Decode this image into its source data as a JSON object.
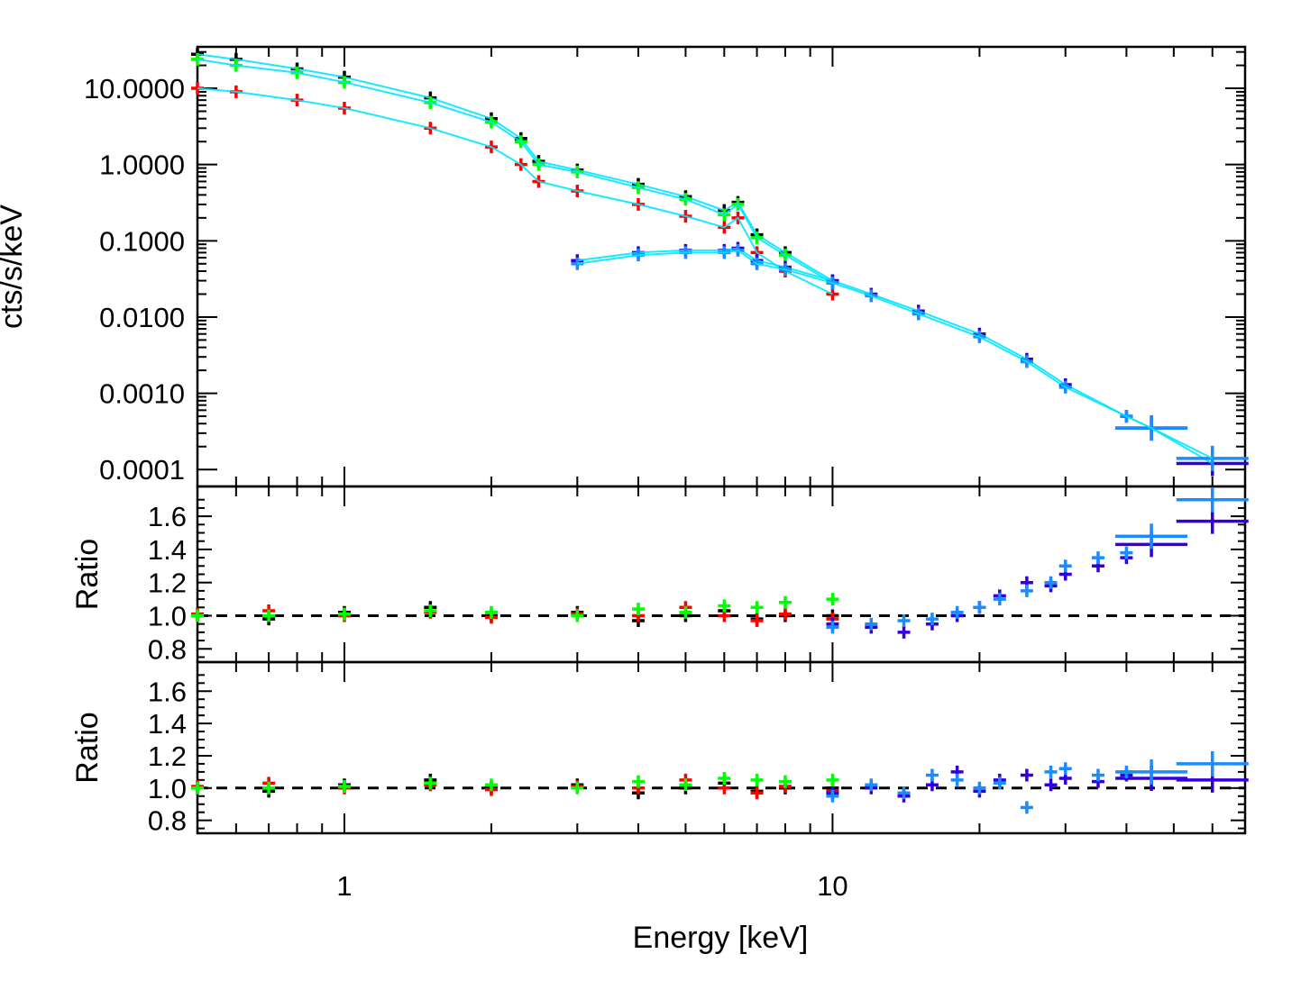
{
  "chart_data": {
    "type": "scatter",
    "xscale": "log",
    "xlim": [
      0.5,
      70
    ],
    "xlabel": "Energy [keV]",
    "x_tick_labels": [
      "1",
      "10"
    ],
    "x_tick_values": [
      1,
      10
    ],
    "series_colors": {
      "black": "#000000",
      "red": "#ff0000",
      "green": "#00ff00",
      "purple": "#3300dd",
      "blue": "#1a8cff",
      "model_cyan": "#00e5ff"
    },
    "panels": [
      {
        "panel": "spectrum",
        "ylabel": "cts/s/keV",
        "yscale": "log",
        "ylim": [
          6e-05,
          35
        ],
        "y_tick_labels": [
          "10.0000",
          "1.0000",
          "0.1000",
          "0.0100",
          "0.0010",
          "0.0001"
        ],
        "y_tick_values": [
          10,
          1,
          0.1,
          0.01,
          0.001,
          0.0001
        ],
        "series": [
          {
            "color": "black",
            "x": [
              0.5,
              0.6,
              0.8,
              1.0,
              1.5,
              2.0,
              2.3,
              2.5,
              3.0,
              4.0,
              5.0,
              6.0,
              6.4,
              7.0,
              8.0,
              10.0
            ],
            "y": [
              28,
              24,
              18,
              14,
              7.5,
              4.0,
              2.2,
              1.1,
              0.85,
              0.55,
              0.38,
              0.25,
              0.32,
              0.12,
              0.07,
              0.03
            ]
          },
          {
            "color": "green",
            "x": [
              0.5,
              0.6,
              0.8,
              1.0,
              1.5,
              2.0,
              2.3,
              2.5,
              3.0,
              4.0,
              5.0,
              6.0,
              6.4,
              7.0,
              8.0,
              10.0
            ],
            "y": [
              24,
              20,
              16,
              12,
              6.5,
              3.6,
              2.0,
              1.0,
              0.8,
              0.5,
              0.35,
              0.22,
              0.3,
              0.11,
              0.065,
              0.028
            ]
          },
          {
            "color": "red",
            "x": [
              0.5,
              0.6,
              0.8,
              1.0,
              1.5,
              2.0,
              2.3,
              2.5,
              3.0,
              4.0,
              5.0,
              6.0,
              6.4,
              7.0,
              8.0,
              10.0
            ],
            "y": [
              10,
              9,
              7,
              5.5,
              3.0,
              1.7,
              1.0,
              0.6,
              0.45,
              0.3,
              0.21,
              0.15,
              0.2,
              0.07,
              0.04,
              0.02
            ]
          },
          {
            "color": "purple",
            "x": [
              3.0,
              4.0,
              5.0,
              6.0,
              6.4,
              7.0,
              8.0,
              10.0,
              12.0,
              15.0,
              20.0,
              25.0,
              30.0,
              40.0,
              45.0,
              60.0
            ],
            "y": [
              0.055,
              0.07,
              0.075,
              0.075,
              0.08,
              0.055,
              0.045,
              0.03,
              0.02,
              0.012,
              0.006,
              0.0028,
              0.0013,
              0.0005,
              0.00035,
              0.00012
            ]
          },
          {
            "color": "blue",
            "x": [
              3.0,
              4.0,
              5.0,
              6.0,
              6.4,
              7.0,
              8.0,
              10.0,
              12.0,
              15.0,
              20.0,
              25.0,
              30.0,
              40.0,
              45.0,
              60.0
            ],
            "y": [
              0.05,
              0.065,
              0.07,
              0.07,
              0.075,
              0.05,
              0.042,
              0.028,
              0.019,
              0.011,
              0.0055,
              0.0026,
              0.0012,
              0.0005,
              0.00035,
              0.00014
            ]
          }
        ]
      },
      {
        "panel": "ratio-1",
        "ylabel": "Ratio",
        "ylim": [
          0.72,
          1.78
        ],
        "y_tick_labels": [
          "1.6",
          "1.4",
          "1.2",
          "1.0",
          "0.8"
        ],
        "y_tick_values": [
          1.6,
          1.4,
          1.2,
          1.0,
          0.8
        ],
        "reference_line": 1.0,
        "series": [
          {
            "color": "black",
            "x": [
              0.5,
              0.7,
              1.0,
              1.5,
              2.0,
              3.0,
              4.0,
              5.0,
              6.0,
              7.0,
              8.0,
              10.0
            ],
            "y": [
              1.0,
              0.98,
              1.02,
              1.05,
              1.0,
              1.02,
              0.97,
              1.0,
              1.03,
              0.98,
              1.0,
              1.0
            ]
          },
          {
            "color": "red",
            "x": [
              0.5,
              0.7,
              1.0,
              1.5,
              2.0,
              3.0,
              4.0,
              5.0,
              6.0,
              7.0,
              8.0,
              10.0
            ],
            "y": [
              1.01,
              1.03,
              1.0,
              1.02,
              0.99,
              1.01,
              1.0,
              1.05,
              1.0,
              0.97,
              1.01,
              0.98
            ]
          },
          {
            "color": "green",
            "x": [
              0.5,
              0.7,
              1.0,
              1.5,
              2.0,
              3.0,
              4.0,
              5.0,
              6.0,
              7.0,
              8.0,
              10.0
            ],
            "y": [
              1.0,
              1.0,
              1.01,
              1.03,
              1.02,
              1.0,
              1.04,
              1.02,
              1.06,
              1.05,
              1.08,
              1.1
            ]
          },
          {
            "color": "purple",
            "x": [
              10.0,
              12.0,
              14.0,
              16.0,
              18.0,
              20.0,
              22.0,
              25.0,
              28.0,
              30.0,
              35.0,
              40.0,
              45.0,
              60.0
            ],
            "y": [
              0.95,
              0.93,
              0.9,
              0.95,
              1.0,
              1.05,
              1.12,
              1.2,
              1.18,
              1.25,
              1.3,
              1.35,
              1.43,
              1.57
            ]
          },
          {
            "color": "blue",
            "x": [
              10.0,
              12.0,
              14.0,
              16.0,
              18.0,
              20.0,
              22.0,
              25.0,
              28.0,
              30.0,
              35.0,
              40.0,
              45.0,
              60.0
            ],
            "y": [
              0.93,
              0.95,
              0.97,
              0.98,
              1.02,
              1.05,
              1.1,
              1.15,
              1.2,
              1.3,
              1.35,
              1.38,
              1.48,
              1.7
            ]
          }
        ]
      },
      {
        "panel": "ratio-2",
        "ylabel": "Ratio",
        "ylim": [
          0.72,
          1.78
        ],
        "y_tick_labels": [
          "1.6",
          "1.4",
          "1.2",
          "1.0",
          "0.8"
        ],
        "y_tick_values": [
          1.6,
          1.4,
          1.2,
          1.0,
          0.8
        ],
        "reference_line": 1.0,
        "series": [
          {
            "color": "black",
            "x": [
              0.5,
              0.7,
              1.0,
              1.5,
              2.0,
              3.0,
              4.0,
              5.0,
              6.0,
              7.0,
              8.0,
              10.0
            ],
            "y": [
              1.0,
              0.98,
              1.02,
              1.05,
              1.0,
              1.02,
              0.97,
              1.0,
              1.03,
              0.98,
              1.0,
              1.0
            ]
          },
          {
            "color": "red",
            "x": [
              0.5,
              0.7,
              1.0,
              1.5,
              2.0,
              3.0,
              4.0,
              5.0,
              6.0,
              7.0,
              8.0,
              10.0
            ],
            "y": [
              1.01,
              1.03,
              1.0,
              1.02,
              0.99,
              1.01,
              1.0,
              1.05,
              1.0,
              0.97,
              1.01,
              0.98
            ]
          },
          {
            "color": "green",
            "x": [
              0.5,
              0.7,
              1.0,
              1.5,
              2.0,
              3.0,
              4.0,
              5.0,
              6.0,
              7.0,
              8.0,
              10.0
            ],
            "y": [
              1.0,
              1.0,
              1.01,
              1.03,
              1.02,
              1.0,
              1.04,
              1.02,
              1.06,
              1.05,
              1.04,
              1.05
            ]
          },
          {
            "color": "purple",
            "x": [
              10.0,
              12.0,
              14.0,
              16.0,
              18.0,
              20.0,
              22.0,
              25.0,
              28.0,
              30.0,
              35.0,
              40.0,
              45.0,
              60.0
            ],
            "y": [
              0.97,
              1.0,
              0.95,
              1.02,
              1.1,
              0.98,
              1.05,
              1.08,
              1.02,
              1.06,
              1.04,
              1.08,
              1.06,
              1.05
            ]
          },
          {
            "color": "blue",
            "x": [
              10.0,
              12.0,
              14.0,
              16.0,
              18.0,
              20.0,
              22.0,
              25.0,
              28.0,
              30.0,
              35.0,
              40.0,
              45.0,
              60.0
            ],
            "y": [
              0.95,
              1.02,
              0.97,
              1.08,
              1.05,
              1.0,
              1.03,
              0.88,
              1.1,
              1.12,
              1.08,
              1.1,
              1.1,
              1.15
            ]
          }
        ]
      }
    ]
  }
}
